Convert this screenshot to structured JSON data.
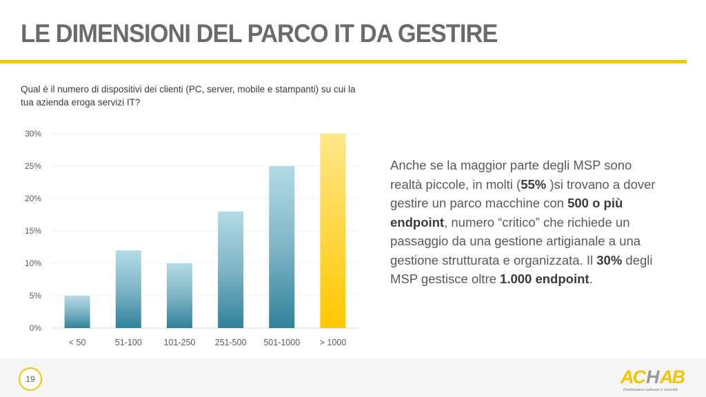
{
  "title": "LE DIMENSIONI DEL PARCO IT DA GESTIRE",
  "question": "Qual è il numero di dispositivi dei clienti (PC, server, mobile e stampanti) su cui la tua azienda eroga servizi IT?",
  "text": {
    "p1": "Anche se la maggior parte degli MSP sono realtà piccole, in molti (",
    "b1": "55%",
    "p2": " )si trovano a dover gestire un parco macchine con ",
    "b2": "500 o più endpoint",
    "p3": ", numero “critico” che richiede un passaggio da una gestione artigianale a una gestione strutturata e organizzata. Il ",
    "b3": "30%",
    "p4": " degli MSP gestisce oltre ",
    "b4": "1.000 endpoint",
    "p5": "."
  },
  "page_number": "19",
  "logo": {
    "name": "ACHAB",
    "tagline": "Distribuiamo software e serenità"
  },
  "colors": {
    "accent": "#f5c400",
    "bar_top": "#b3dbe6",
    "bar_bottom": "#2f819a",
    "highlight_top": "#ffe68a",
    "highlight_bottom": "#ffc800"
  },
  "chart_data": {
    "type": "bar",
    "categories": [
      "< 50",
      "51-100",
      "101-250",
      "251-500",
      "501-1000",
      "> 1000"
    ],
    "values": [
      5,
      12,
      10,
      18,
      25,
      30
    ],
    "highlight_index": 5,
    "ylim": [
      0,
      30
    ],
    "yticks": [
      "0%",
      "5%",
      "10%",
      "15%",
      "20%",
      "25%",
      "30%"
    ],
    "ytick_values": [
      0,
      5,
      10,
      15,
      20,
      25,
      30
    ],
    "grid": true,
    "xlabel": "",
    "ylabel": ""
  }
}
